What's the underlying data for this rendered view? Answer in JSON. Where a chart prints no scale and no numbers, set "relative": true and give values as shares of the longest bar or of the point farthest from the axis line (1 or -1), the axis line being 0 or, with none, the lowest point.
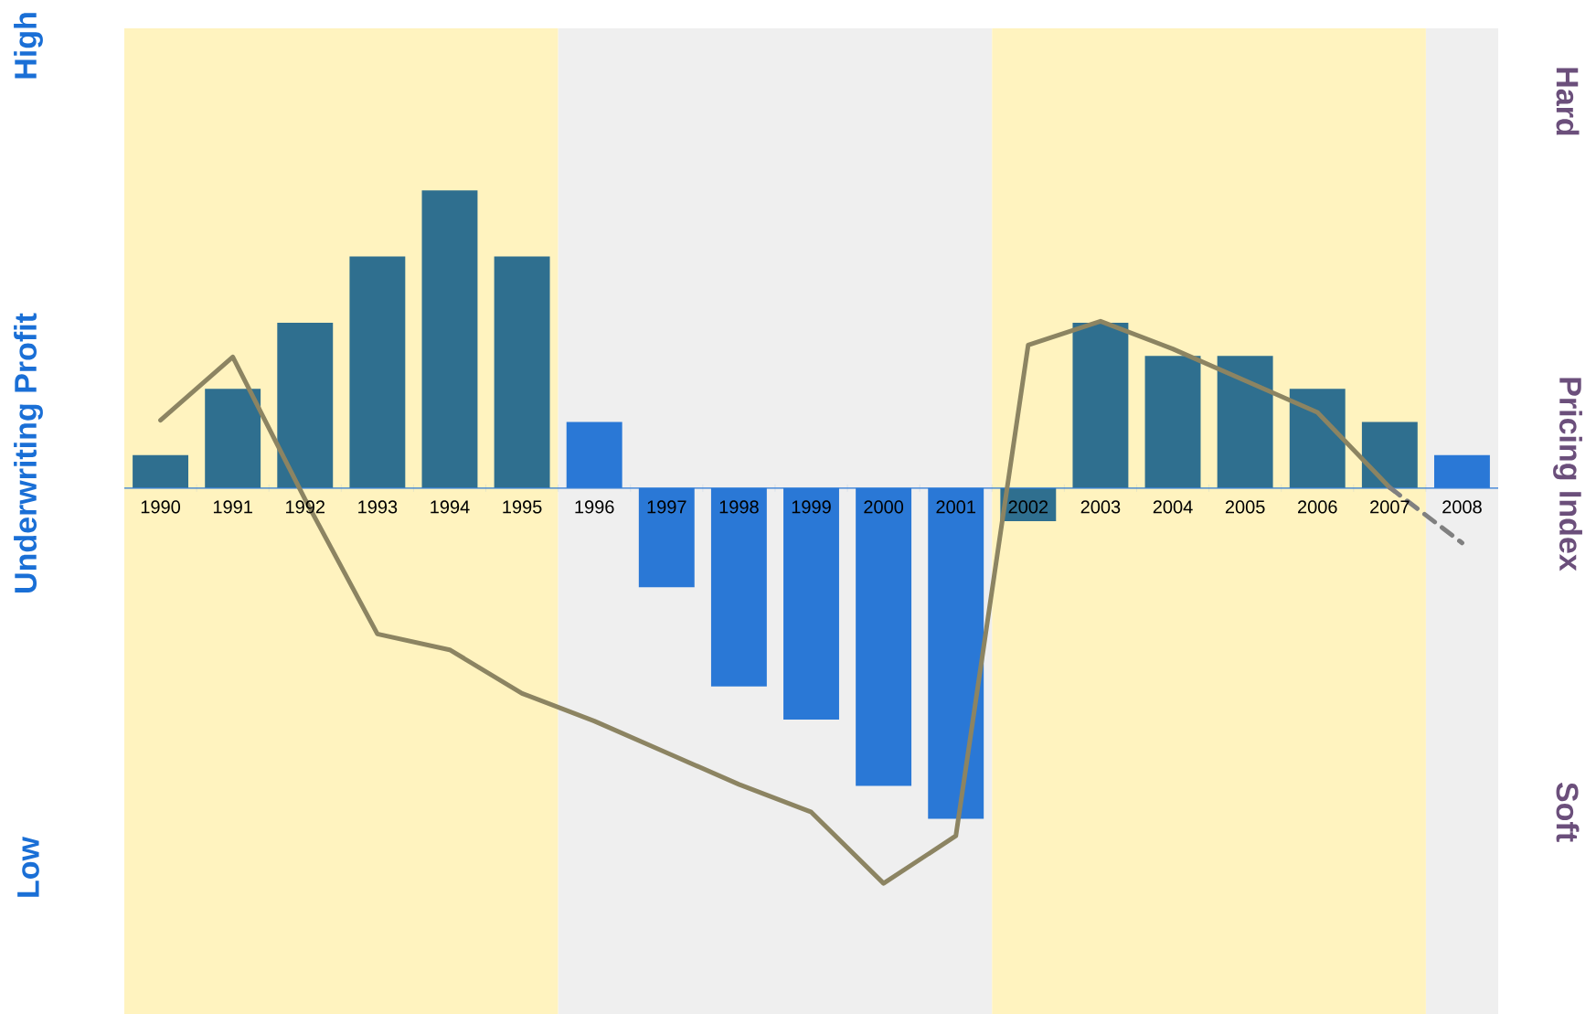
{
  "chart_data": {
    "type": "bar",
    "relative": true,
    "ylabel": "Underwriting Profit",
    "y2label": "Pricing Index",
    "annotations": [
      "High",
      "Low",
      "Hard",
      "Soft"
    ],
    "categories": [
      "1990",
      "1991",
      "1992",
      "1993",
      "1994",
      "1995",
      "1996",
      "1997",
      "1998",
      "1999",
      "2000",
      "2001",
      "2002",
      "2003",
      "2004",
      "2005",
      "2006",
      "2007",
      "2008"
    ],
    "series": [
      {
        "type": "bar",
        "colors": [
          "#2f6f8f",
          "#2f6f8f",
          "#2f6f8f",
          "#2f6f8f",
          "#2f6f8f",
          "#2f6f8f",
          "#2a78d6",
          "#2a78d6",
          "#2a78d6",
          "#2a78d6",
          "#2a78d6",
          "#2a78d6",
          "#2f6f8f",
          "#2f6f8f",
          "#2f6f8f",
          "#2f6f8f",
          "#2f6f8f",
          "#2f6f8f",
          "#2a78d6"
        ],
        "values": [
          0.1,
          0.3,
          0.5,
          0.7,
          0.9,
          0.7,
          0.2,
          -0.3,
          -0.6,
          -0.7,
          -0.9,
          -1,
          -0.1,
          0.5,
          0.4,
          0.4,
          0.3,
          0.2,
          0.1
        ]
      },
      {
        "type": "line",
        "axis": "y2",
        "color": "#8c8462",
        "values": [
          0.17,
          0.33,
          -0.03,
          -0.37,
          -0.41,
          -0.52,
          -0.59,
          -0.67,
          -0.75,
          -0.82,
          -1,
          -0.88,
          0.36,
          0.42,
          0.35,
          0.27,
          0.19,
          0,
          null
        ]
      },
      {
        "type": "line",
        "axis": "y2",
        "color": "#808080",
        "line_style": "dashed",
        "values": [
          null,
          null,
          null,
          null,
          null,
          null,
          null,
          null,
          null,
          null,
          null,
          null,
          null,
          null,
          null,
          null,
          null,
          0,
          -0.14
        ]
      }
    ],
    "bands": [
      {
        "axis": "x",
        "from": "1990",
        "to": "1995",
        "color": "#fff3bf"
      },
      {
        "axis": "x",
        "from": "1996",
        "to": "2001",
        "color": "#efefef"
      },
      {
        "axis": "x",
        "from": "2002",
        "to": "2007",
        "color": "#fff3bf"
      },
      {
        "axis": "x",
        "from": "2008",
        "to": "2008",
        "color": "#efefef"
      }
    ]
  }
}
